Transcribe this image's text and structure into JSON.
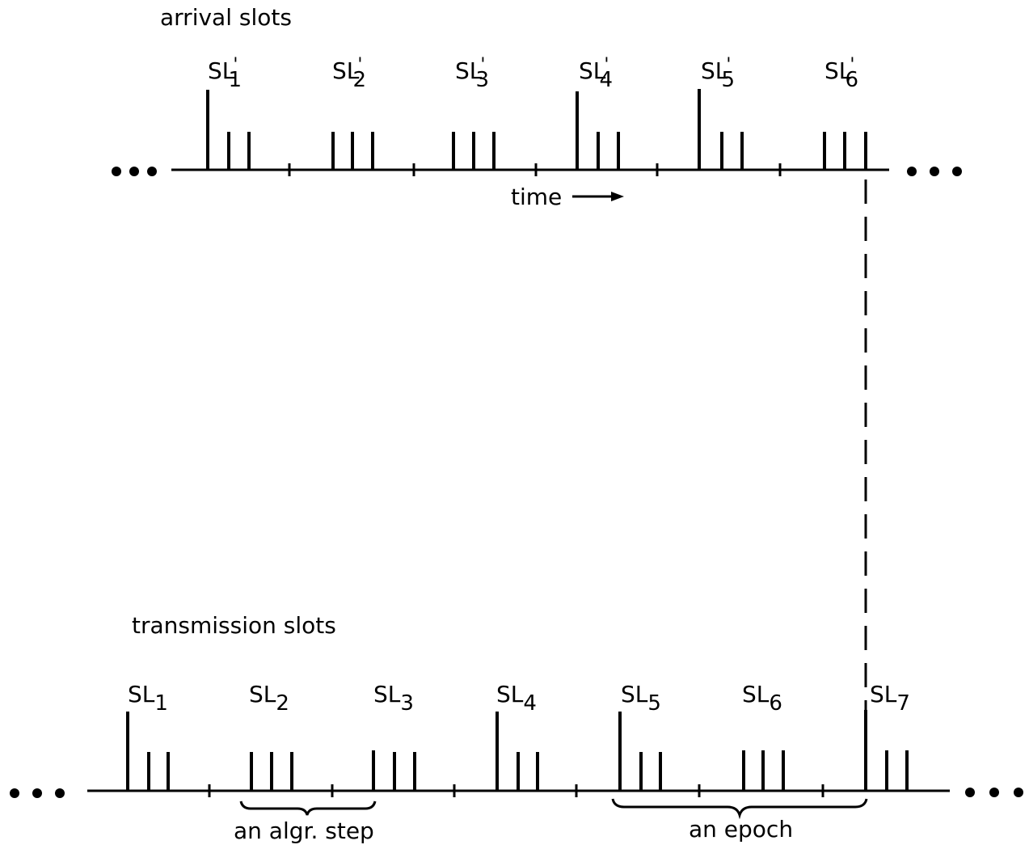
{
  "arrival": {
    "title": "arrival slots",
    "time_label": "time",
    "slots": [
      {
        "base": "SL",
        "prime": "'",
        "sub": "1"
      },
      {
        "base": "SL",
        "prime": "'",
        "sub": "2"
      },
      {
        "base": "SL",
        "prime": "'",
        "sub": "3"
      },
      {
        "base": "SL",
        "prime": "'",
        "sub": "4"
      },
      {
        "base": "SL",
        "prime": "'",
        "sub": "5"
      },
      {
        "base": "SL",
        "prime": "'",
        "sub": "6"
      }
    ]
  },
  "transmission": {
    "title": "transmission slots",
    "slots": [
      {
        "base": "SL",
        "sub": "1"
      },
      {
        "base": "SL",
        "sub": "2"
      },
      {
        "base": "SL",
        "sub": "3"
      },
      {
        "base": "SL",
        "sub": "4"
      },
      {
        "base": "SL",
        "sub": "5"
      },
      {
        "base": "SL",
        "sub": "6"
      },
      {
        "base": "SL",
        "sub": "7"
      }
    ],
    "brace_step_label": "an algr. step",
    "brace_epoch_label": "an epoch"
  }
}
